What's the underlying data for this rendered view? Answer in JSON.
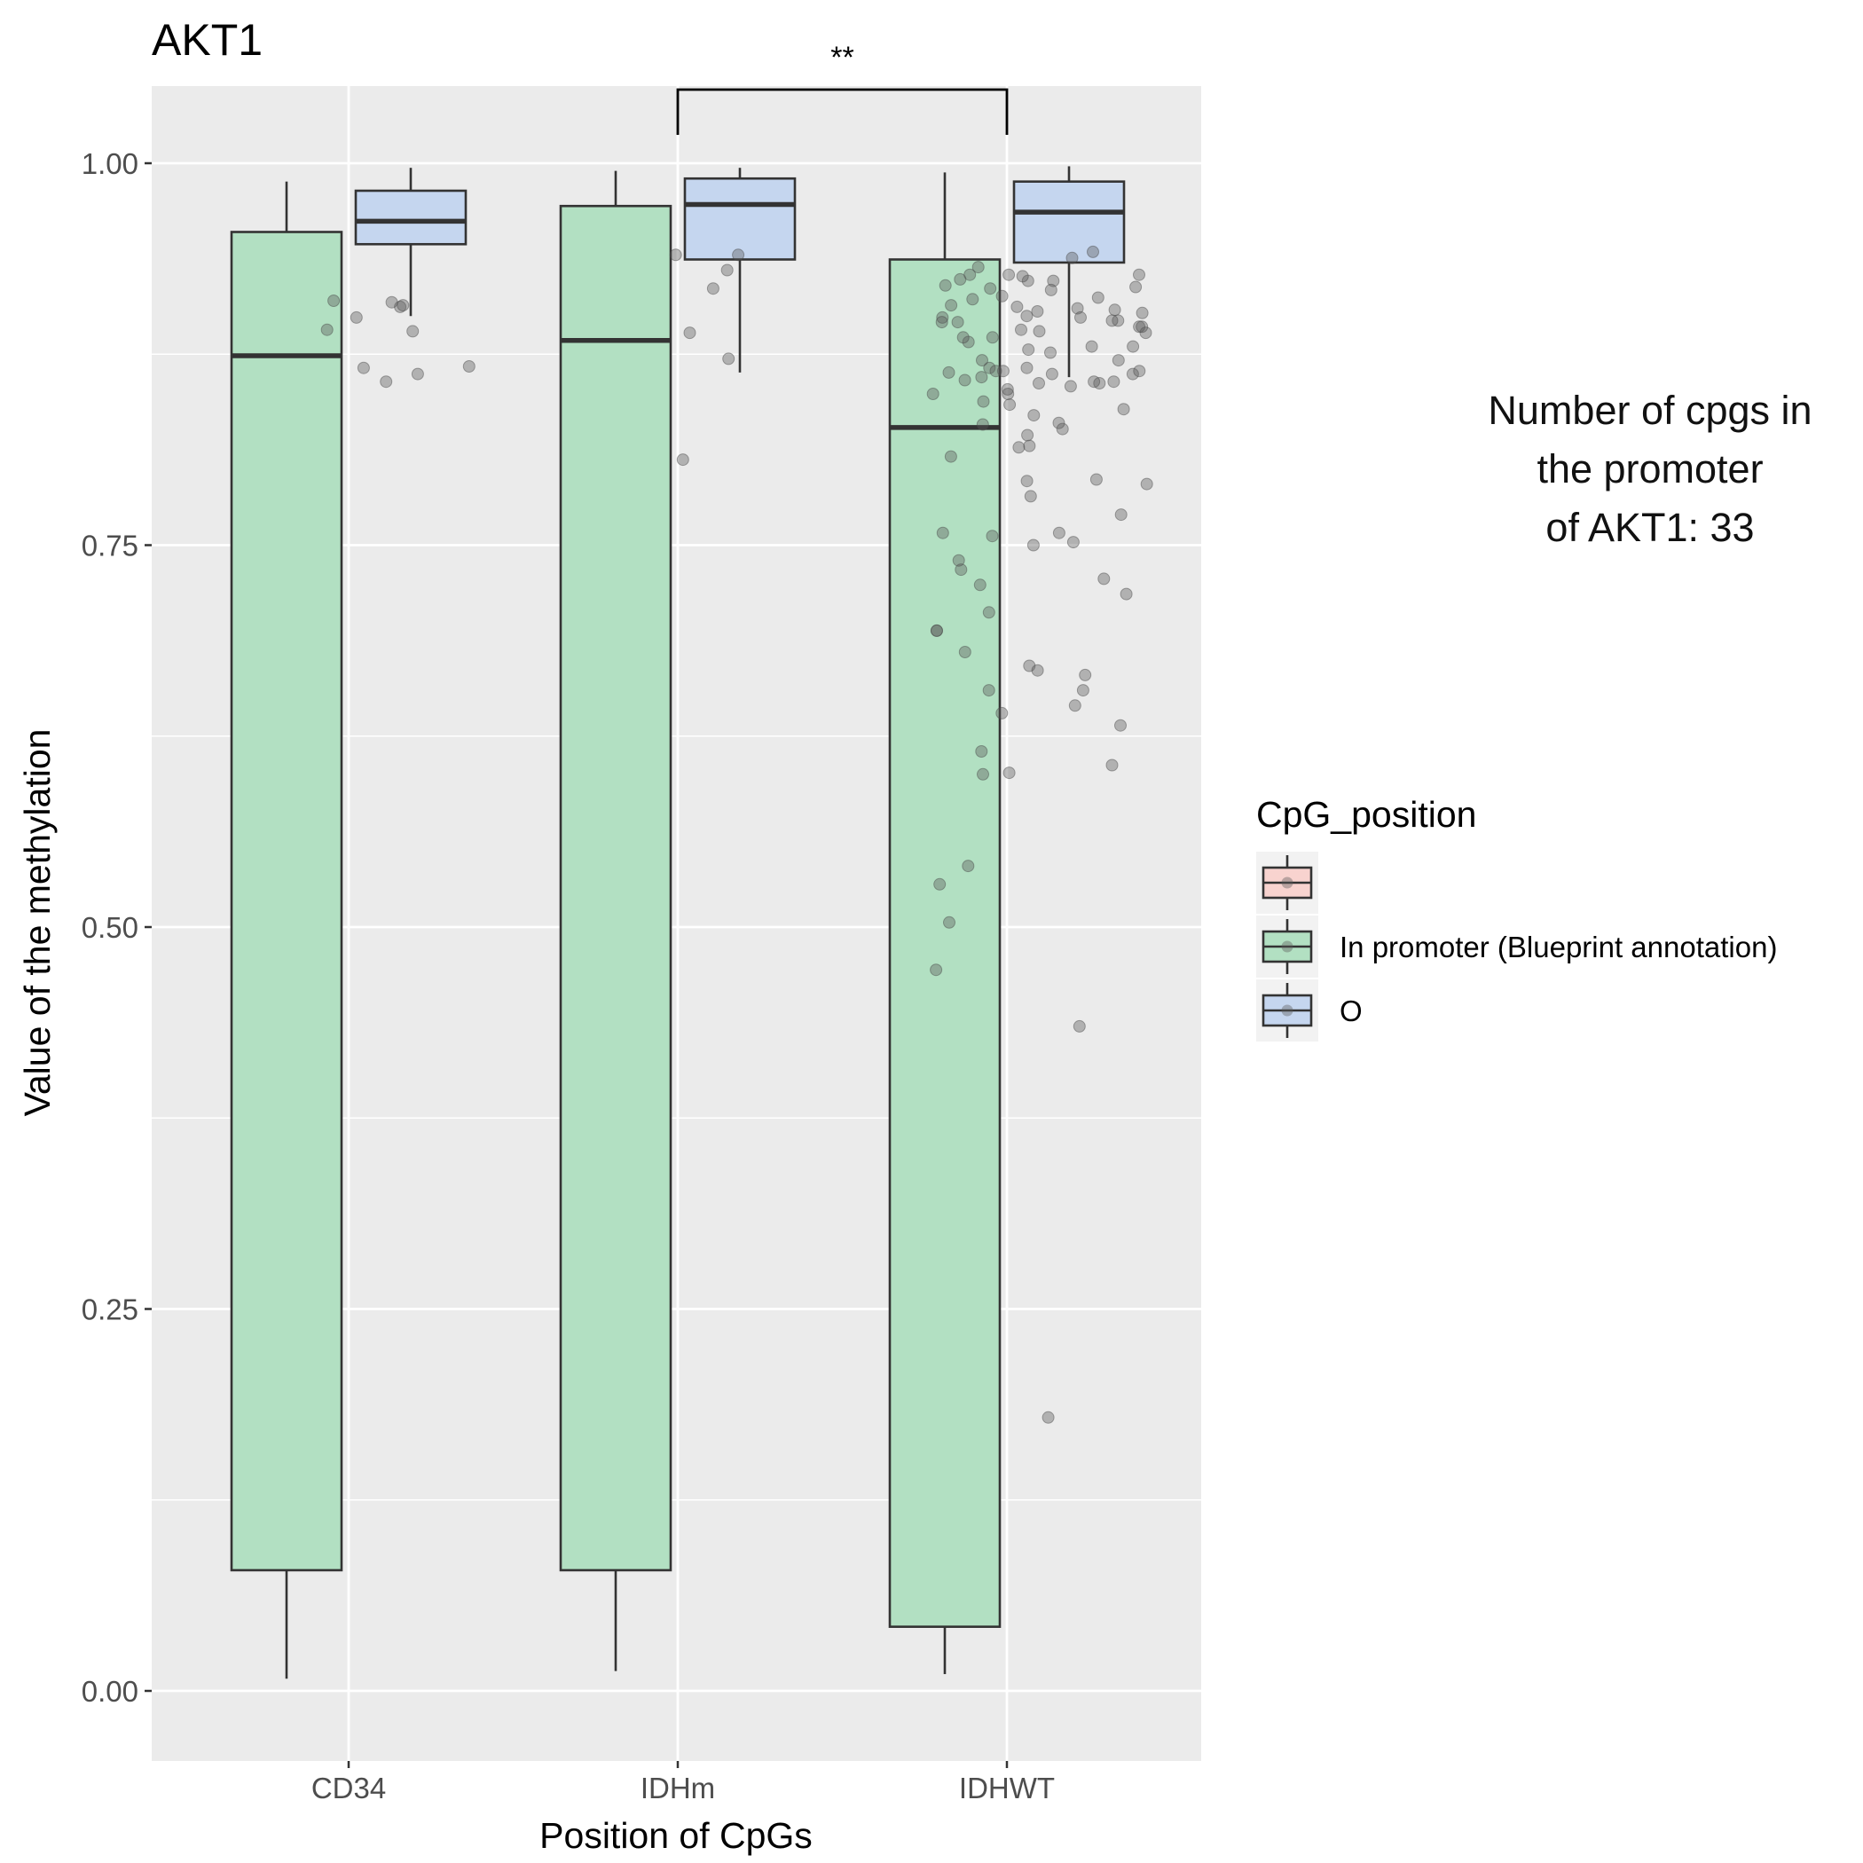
{
  "chart_data": {
    "type": "boxplot",
    "title": "AKT1",
    "xlabel": "Position of CpGs",
    "ylabel": "Value of the methylation",
    "categories": [
      "CD34",
      "IDHm",
      "IDHWT"
    ],
    "ylim": [
      -0.05,
      1.05
    ],
    "yticks": [
      0.0,
      0.25,
      0.5,
      0.75,
      1.0
    ],
    "ytick_labels": [
      "0.00",
      "0.25",
      "0.50",
      "0.75",
      "1.00"
    ],
    "grid": true,
    "legend": {
      "title": "CpG_position",
      "placement": "right",
      "entries": [
        {
          "label": "",
          "color": "#f8d3cf"
        },
        {
          "label": "In promoter (Blueprint annotation)",
          "color": "#b2e0c2"
        },
        {
          "label": "O",
          "color": "#c5d6ef"
        }
      ]
    },
    "series": [
      {
        "legend_index": 1,
        "color": "#b2e0c2",
        "boxes": [
          {
            "category": "CD34",
            "whisker_low": 0.008,
            "q1": 0.079,
            "median": 0.874,
            "q3": 0.955,
            "whisker_high": 0.988
          },
          {
            "category": "IDHm",
            "whisker_low": 0.013,
            "q1": 0.079,
            "median": 0.884,
            "q3": 0.972,
            "whisker_high": 0.995
          },
          {
            "category": "IDHWT",
            "whisker_low": 0.011,
            "q1": 0.042,
            "median": 0.827,
            "q3": 0.937,
            "whisker_high": 0.994
          }
        ]
      },
      {
        "legend_index": 2,
        "color": "#c5d6ef",
        "boxes": [
          {
            "category": "CD34",
            "whisker_low": 0.9,
            "q1": 0.947,
            "median": 0.962,
            "q3": 0.982,
            "whisker_high": 0.997
          },
          {
            "category": "IDHm",
            "whisker_low": 0.863,
            "q1": 0.937,
            "median": 0.973,
            "q3": 0.99,
            "whisker_high": 0.997
          },
          {
            "category": "IDHWT",
            "whisker_low": 0.86,
            "q1": 0.935,
            "median": 0.968,
            "q3": 0.988,
            "whisker_high": 0.998
          }
        ]
      }
    ],
    "points": [
      {
        "category": "CD34",
        "values": [
          0.906,
          0.89,
          0.91,
          0.899,
          0.909,
          0.907,
          0.891,
          0.867,
          0.862,
          0.857,
          0.866
        ]
      },
      {
        "category": "IDHm",
        "values": [
          0.94,
          0.93,
          0.94,
          0.918,
          0.889,
          0.872,
          0.806
        ]
      },
      {
        "category": "IDHWT",
        "values": [
          0.923,
          0.903,
          0.927,
          0.899,
          0.919,
          0.902,
          0.896,
          0.923,
          0.893,
          0.911,
          0.926,
          0.917,
          0.905,
          0.886,
          0.883,
          0.889,
          0.878,
          0.871,
          0.876,
          0.864,
          0.858,
          0.856,
          0.849,
          0.852,
          0.863,
          0.862,
          0.844,
          0.839,
          0.835,
          0.829,
          0.826,
          0.814,
          0.793,
          0.752,
          0.734,
          0.724,
          0.671,
          0.907,
          0.896,
          0.891,
          0.435,
          0.938,
          0.927,
          0.913,
          0.9,
          0.89,
          0.866,
          0.857,
          0.815,
          0.792,
          0.655,
          0.6,
          0.942,
          0.924,
          0.918,
          0.912,
          0.897,
          0.893,
          0.88,
          0.871,
          0.857,
          0.854,
          0.862,
          0.694,
          0.64,
          0.601,
          0.932,
          0.906,
          0.899,
          0.88,
          0.866,
          0.864,
          0.849,
          0.842,
          0.83,
          0.822,
          0.808,
          0.79,
          0.782,
          0.77,
          0.758,
          0.75,
          0.74,
          0.728,
          0.718,
          0.706,
          0.694,
          0.68,
          0.665,
          0.655,
          0.645,
          0.632,
          0.615,
          0.606,
          0.54,
          0.528,
          0.503,
          0.472,
          0.179,
          0.897,
          0.904,
          0.886,
          0.856,
          0.758,
          0.756,
          0.668,
          0.92,
          0.927,
          0.86,
          0.864
        ]
      }
    ],
    "significance": [
      {
        "between": [
          "IDHm",
          "IDHWT"
        ],
        "label": "**"
      }
    ],
    "annotation": [
      "Number of cpgs in",
      "the promoter",
      "of AKT1: 33"
    ]
  }
}
